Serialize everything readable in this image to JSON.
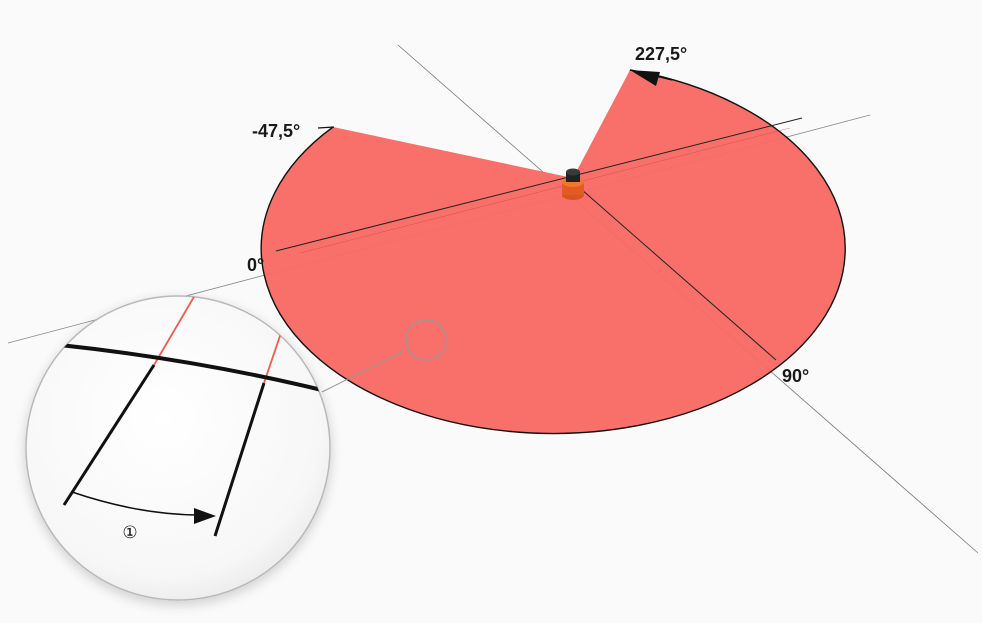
{
  "labels": {
    "angle_start": "-47,5°",
    "angle_end": "227,5°",
    "angle_zero": "0°",
    "angle_ninety": "90°",
    "callout_marker": "①"
  },
  "colors": {
    "field": "#f86a63",
    "outline": "#111111",
    "axis": "#555555",
    "red_line": "#f05a50",
    "background": "#fafafa"
  }
}
